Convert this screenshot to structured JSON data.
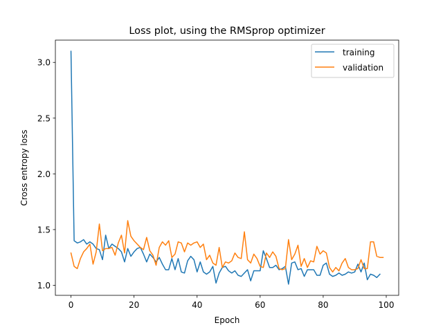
{
  "chart_data": {
    "type": "line",
    "title": "Loss plot, using the RMSprop optimizer",
    "xlabel": "Epoch",
    "ylabel": "Cross entropy loss",
    "xlim": [
      -4.95,
      103.95
    ],
    "ylim": [
      0.91,
      3.2
    ],
    "xticks": [
      0,
      20,
      40,
      60,
      80,
      100
    ],
    "yticks": [
      1.0,
      1.5,
      2.0,
      2.5,
      3.0
    ],
    "xtick_labels": [
      "0",
      "20",
      "40",
      "60",
      "80",
      "100"
    ],
    "ytick_labels": [
      "1.0",
      "1.5",
      "2.0",
      "2.5",
      "3.0"
    ],
    "grid": false,
    "legend_position": "top-right",
    "series": [
      {
        "name": "training",
        "color": "#1f77b4",
        "values": [
          3.1,
          1.4,
          1.38,
          1.39,
          1.41,
          1.37,
          1.39,
          1.37,
          1.33,
          1.32,
          1.23,
          1.45,
          1.33,
          1.37,
          1.35,
          1.33,
          1.3,
          1.21,
          1.33,
          1.26,
          1.3,
          1.33,
          1.34,
          1.28,
          1.21,
          1.28,
          1.25,
          1.21,
          1.25,
          1.19,
          1.14,
          1.14,
          1.24,
          1.14,
          1.24,
          1.12,
          1.11,
          1.22,
          1.26,
          1.23,
          1.12,
          1.21,
          1.12,
          1.1,
          1.12,
          1.17,
          1.02,
          1.11,
          1.16,
          1.17,
          1.13,
          1.11,
          1.13,
          1.09,
          1.08,
          1.11,
          1.14,
          1.04,
          1.13,
          1.13,
          1.13,
          1.31,
          1.24,
          1.16,
          1.16,
          1.18,
          1.14,
          1.15,
          1.17,
          1.01,
          1.2,
          1.21,
          1.14,
          1.15,
          1.08,
          1.14,
          1.14,
          1.14,
          1.09,
          1.09,
          1.18,
          1.2,
          1.1,
          1.08,
          1.09,
          1.11,
          1.09,
          1.1,
          1.12,
          1.11,
          1.12,
          1.19,
          1.12,
          1.2,
          1.05,
          1.1,
          1.09,
          1.07,
          1.1
        ]
      },
      {
        "name": "validation",
        "color": "#ff7f0e",
        "values": [
          1.29,
          1.17,
          1.15,
          1.24,
          1.3,
          1.33,
          1.37,
          1.19,
          1.3,
          1.55,
          1.31,
          1.33,
          1.33,
          1.34,
          1.27,
          1.38,
          1.45,
          1.29,
          1.58,
          1.44,
          1.4,
          1.37,
          1.34,
          1.32,
          1.43,
          1.31,
          1.27,
          1.18,
          1.34,
          1.39,
          1.36,
          1.4,
          1.25,
          1.28,
          1.39,
          1.38,
          1.3,
          1.38,
          1.36,
          1.38,
          1.39,
          1.34,
          1.37,
          1.23,
          1.27,
          1.2,
          1.18,
          1.34,
          1.16,
          1.21,
          1.2,
          1.22,
          1.29,
          1.25,
          1.24,
          1.48,
          1.23,
          1.2,
          1.28,
          1.24,
          1.17,
          1.16,
          1.29,
          1.25,
          1.3,
          1.26,
          1.15,
          1.14,
          1.15,
          1.41,
          1.23,
          1.28,
          1.36,
          1.17,
          1.24,
          1.16,
          1.22,
          1.21,
          1.35,
          1.28,
          1.31,
          1.29,
          1.16,
          1.12,
          1.16,
          1.13,
          1.2,
          1.24,
          1.16,
          1.14,
          1.14,
          1.15,
          1.23,
          1.15,
          1.15,
          1.39,
          1.39,
          1.26,
          1.25,
          1.25
        ]
      }
    ]
  }
}
